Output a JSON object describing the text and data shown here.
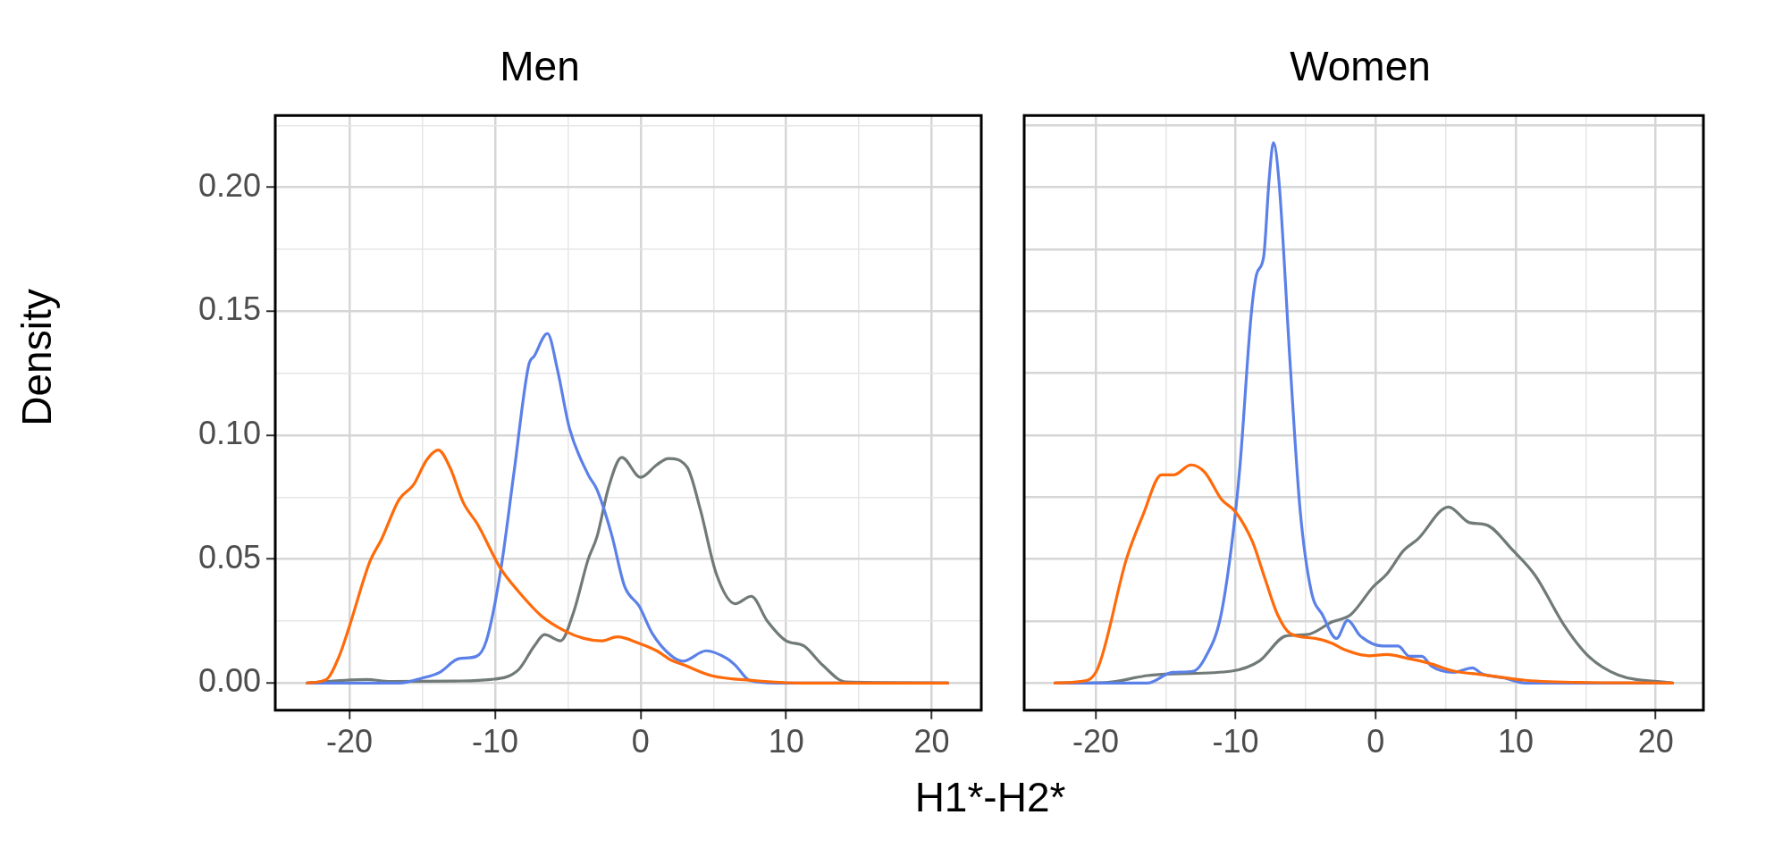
{
  "chart_data": [
    {
      "type": "line",
      "title": "Men",
      "xlabel": "H1*-H2*",
      "ylabel": "Density",
      "grid": true,
      "legend": false,
      "marker": "none",
      "line_style": "solid",
      "xlim": [
        -25.1,
        23.4
      ],
      "ylim": [
        -0.011,
        0.229
      ],
      "xticks": [
        -20,
        {
          "value": -15,
          "label": null
        },
        -10,
        {
          "value": -5,
          "label": null
        },
        0,
        {
          "value": 5,
          "label": null
        },
        10,
        {
          "value": 15,
          "label": null
        },
        20
      ],
      "yticks": [
        {
          "value": 0,
          "label": "0.00"
        },
        {
          "value": 0.025,
          "label": null
        },
        {
          "value": 0.05,
          "label": "0.05"
        },
        {
          "value": 0.075,
          "label": null
        },
        {
          "value": 0.1,
          "label": "0.10"
        },
        {
          "value": 0.125,
          "label": null
        },
        {
          "value": 0.15,
          "label": "0.15"
        },
        {
          "value": 0.175,
          "label": null
        },
        {
          "value": 0.2,
          "label": "0.20"
        },
        {
          "value": 0.225,
          "label": null
        }
      ],
      "series": [
        {
          "color": "#ff6a0a",
          "x": [
            -22.9,
            -21.6,
            -20.7,
            -20.0,
            -18.6,
            -17.8,
            -16.6,
            -15.6,
            -14.7,
            -13.9,
            -13.1,
            -12.2,
            -11.2,
            -9.6,
            -8.4,
            -6.8,
            -5.2,
            -3.9,
            -2.7,
            -1.6,
            -0.1,
            1.1,
            2.1,
            3.0,
            4.9,
            7.8,
            10.9,
            21.1
          ],
          "values": [
            0,
            0.0014,
            0.011,
            0.023,
            0.049,
            0.058,
            0.074,
            0.08,
            0.09,
            0.094,
            0.087,
            0.073,
            0.064,
            0.046,
            0.037,
            0.027,
            0.021,
            0.018,
            0.017,
            0.0186,
            0.016,
            0.013,
            0.0092,
            0.0072,
            0.0029,
            0.001,
            0,
            0
          ]
        },
        {
          "color": "#5b80e8",
          "x": [
            -22.9,
            -16.6,
            -15.0,
            -13.8,
            -12.5,
            -11.3,
            -10.6,
            -9.6,
            -8.7,
            -7.7,
            -7.3,
            -6.4,
            -5.7,
            -4.9,
            -3.6,
            -3.0,
            -2.0,
            -1.1,
            -0.1,
            0.8,
            2.1,
            2.9,
            4.5,
            5.9,
            6.5,
            7.5,
            9.3,
            21.1
          ],
          "values": [
            0,
            0,
            0.002,
            0.0043,
            0.0098,
            0.0107,
            0.017,
            0.046,
            0.085,
            0.128,
            0.132,
            0.141,
            0.126,
            0.103,
            0.084,
            0.078,
            0.06,
            0.039,
            0.031,
            0.02,
            0.011,
            0.0088,
            0.013,
            0.01,
            0.0072,
            0.001,
            0,
            0
          ]
        },
        {
          "color": "#707a78",
          "x": [
            -22.9,
            -18.8,
            -17.2,
            -12.8,
            -10.3,
            -8.4,
            -7.3,
            -6.6,
            -5.5,
            -4.6,
            -3.6,
            -3.0,
            -2.2,
            -1.3,
            0,
            1.1,
            1.9,
            3.2,
            4.1,
            5.2,
            6.5,
            7.6,
            8.7,
            10.0,
            11.2,
            12.5,
            14.1,
            21.1
          ],
          "values": [
            0,
            0.0014,
            0.0006,
            0.0008,
            0.0014,
            0.0053,
            0.015,
            0.0195,
            0.017,
            0.0287,
            0.05,
            0.059,
            0.079,
            0.091,
            0.083,
            0.088,
            0.0906,
            0.087,
            0.07,
            0.044,
            0.032,
            0.035,
            0.025,
            0.017,
            0.015,
            0.0072,
            0.0004,
            0
          ]
        }
      ]
    },
    {
      "type": "line",
      "title": "Women",
      "grid": true,
      "legend": false,
      "marker": "none",
      "line_style": "solid",
      "tick_labels": "x",
      "xlim": [
        -25.1,
        23.4
      ],
      "ylim": [
        -0.011,
        0.229
      ],
      "xticks": [
        -20,
        {
          "value": -15,
          "label": null
        },
        -10,
        {
          "value": -5,
          "label": null
        },
        0,
        {
          "value": 5,
          "label": null
        },
        10,
        {
          "value": 15,
          "label": null
        },
        20
      ],
      "yticks": [
        0,
        0.025,
        0.05,
        0.075,
        0.1,
        0.125,
        0.15,
        0.175,
        0.2,
        0.225
      ],
      "series": [
        {
          "color": "#ff6a0a",
          "x": [
            -22.9,
            -21.1,
            -19.9,
            -17.8,
            -16.6,
            -15.3,
            -14.4,
            -13.2,
            -12.2,
            -11.0,
            -10.0,
            -8.8,
            -7.9,
            -7.0,
            -6.1,
            -4.3,
            -3.1,
            -2.3,
            -0.5,
            0.8,
            2.3,
            3.8,
            5.6,
            7.7,
            10.7,
            15.2,
            21.2
          ],
          "values": [
            0,
            0.0006,
            0.0052,
            0.05,
            0.068,
            0.084,
            0.084,
            0.088,
            0.085,
            0.074,
            0.069,
            0.057,
            0.042,
            0.0275,
            0.02,
            0.018,
            0.016,
            0.0136,
            0.011,
            0.0115,
            0.0099,
            0.008,
            0.0048,
            0.0033,
            0.0011,
            0.0002,
            0
          ]
        },
        {
          "color": "#5b80e8",
          "x": [
            -22.9,
            -16.3,
            -14.5,
            -13.0,
            -12.1,
            -11.1,
            -10.3,
            -9.7,
            -8.9,
            -8.5,
            -8.0,
            -7.6,
            -7.3,
            -6.9,
            -6.1,
            -5.4,
            -4.6,
            -3.8,
            -2.8,
            -2.0,
            -1.1,
            0.5,
            1.6,
            2.4,
            3.3,
            4.0,
            5.6,
            6.9,
            7.6,
            9.2,
            10.7,
            21.2
          ],
          "values": [
            0,
            0,
            0.0043,
            0.0048,
            0.011,
            0.026,
            0.055,
            0.087,
            0.148,
            0.165,
            0.172,
            0.204,
            0.218,
            0.202,
            0.128,
            0.07,
            0.037,
            0.0275,
            0.018,
            0.0253,
            0.019,
            0.0149,
            0.0149,
            0.0108,
            0.0108,
            0.0067,
            0.0043,
            0.0061,
            0.0037,
            0.002,
            0,
            0
          ]
        },
        {
          "color": "#707a78",
          "x": [
            -22.9,
            -19.3,
            -16.3,
            -14.5,
            -10.3,
            -8.3,
            -6.4,
            -4.9,
            -3.1,
            -1.8,
            -0.2,
            0.8,
            2.0,
            3.0,
            5.2,
            6.7,
            7.9,
            9.8,
            11.4,
            13.4,
            15.2,
            17.3,
            21.2
          ],
          "values": [
            0,
            0.0002,
            0.003,
            0.0037,
            0.0048,
            0.0089,
            0.019,
            0.0195,
            0.0247,
            0.0275,
            0.0387,
            0.044,
            0.0535,
            0.058,
            0.071,
            0.0647,
            0.0638,
            0.0535,
            0.0433,
            0.0238,
            0.0108,
            0.0033,
            0
          ]
        }
      ]
    }
  ]
}
